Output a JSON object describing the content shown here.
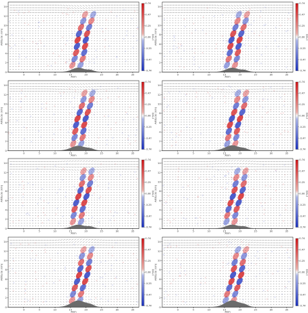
{
  "chart_data": {
    "type": "heatmap",
    "layout": "4 rows x 2 columns of vertical cross-section panels with wind vectors and shaded field over terrain",
    "colors": {
      "negative": "#1f35c4",
      "positive": "#d7191c",
      "neutral": "#ffffff",
      "terrain": "#6b6b6b",
      "vectors": "#555555"
    },
    "panels": [
      {
        "xlabel": "Xkm",
        "ylabel": "Altitude (km)",
        "x_ticks": [
          "0",
          "5",
          "10",
          "15",
          "20",
          "25",
          "30",
          "35"
        ],
        "y_ticks": [
          "0",
          "2",
          "4",
          "6",
          "8",
          "10",
          "12",
          "14"
        ],
        "colorbar": {
          "label": "(m/s)",
          "ticks": [
            "0.74",
            "0.47",
            "0.25",
            "0.00",
            "-0.25",
            "-0.47",
            "-0.74"
          ],
          "range": [
            -0.74,
            0.74
          ]
        },
        "terrain": {
          "peak_x": 17.5,
          "peak_height": 0.9,
          "width": 6,
          "secondary_x": 21.5,
          "secondary_height": 0.35
        }
      },
      {
        "xlabel": "Xkm",
        "ylabel": "Altitude (km)",
        "x_ticks": [
          "0",
          "5",
          "10",
          "15",
          "20",
          "25",
          "30",
          "35"
        ],
        "y_ticks": [
          "0",
          "2",
          "4",
          "6",
          "8",
          "10",
          "12",
          "14"
        ],
        "colorbar": {
          "label": "(m/s)",
          "ticks": [
            "0.74",
            "0.47",
            "0.25",
            "0.00",
            "-0.25",
            "-0.47",
            "-0.74"
          ],
          "range": [
            -0.74,
            0.74
          ]
        },
        "terrain": {
          "peak_x": 17.5,
          "peak_height": 0.9,
          "width": 6,
          "secondary_x": 21.5,
          "secondary_height": 0.35
        }
      },
      {
        "xlabel": "Xkm",
        "ylabel": "Altitude (km)",
        "x_ticks": [
          "0",
          "5",
          "10",
          "15",
          "20",
          "25",
          "30",
          "35"
        ],
        "y_ticks": [
          "0",
          "2",
          "4",
          "6",
          "8",
          "10",
          "12",
          "14"
        ],
        "colorbar": {
          "label": "(m/s)",
          "ticks": [
            "0.74",
            "0.47",
            "0.25",
            "0.00",
            "-0.25",
            "-0.47",
            "-0.74"
          ],
          "range": [
            -0.74,
            0.74
          ]
        },
        "terrain": {
          "peak_x": 17.5,
          "peak_height": 1.0,
          "width": 7,
          "secondary_x": 21.5,
          "secondary_height": 0.3
        }
      },
      {
        "xlabel": "Xkm",
        "ylabel": "Altitude (km)",
        "x_ticks": [
          "0",
          "5",
          "10",
          "15",
          "20",
          "25",
          "30",
          "35"
        ],
        "y_ticks": [
          "0",
          "2",
          "4",
          "6",
          "8",
          "10",
          "12",
          "14"
        ],
        "colorbar": {
          "label": "(m/s)",
          "ticks": [
            "0.74",
            "0.47",
            "0.25",
            "0.00",
            "-0.25",
            "-0.47",
            "-0.74"
          ],
          "range": [
            -0.74,
            0.74
          ]
        },
        "terrain": {
          "peak_x": 17.5,
          "peak_height": 1.1,
          "width": 7,
          "secondary_x": 21.5,
          "secondary_height": 0.3
        }
      },
      {
        "xlabel": "Xkm",
        "ylabel": "Altitude (km)",
        "x_ticks": [
          "0",
          "5",
          "10",
          "15",
          "20",
          "25",
          "30",
          "35"
        ],
        "y_ticks": [
          "0",
          "2",
          "4",
          "6",
          "8",
          "10",
          "12",
          "14"
        ],
        "colorbar": {
          "label": "(m/s)",
          "ticks": [
            "0.74",
            "0.47",
            "0.25",
            "0.00",
            "-0.25",
            "-0.47",
            "-0.74"
          ],
          "range": [
            -0.74,
            0.74
          ]
        },
        "terrain": {
          "peak_x": 17.5,
          "peak_height": 0.8,
          "width": 6,
          "secondary_x": 21.5,
          "secondary_height": 0.35
        }
      },
      {
        "xlabel": "Xkm",
        "ylabel": "Altitude (km)",
        "x_ticks": [
          "0",
          "5",
          "10",
          "15",
          "20",
          "25",
          "30",
          "35"
        ],
        "y_ticks": [
          "0",
          "2",
          "4",
          "6",
          "8",
          "10",
          "12",
          "14"
        ],
        "colorbar": {
          "label": "(m/s)",
          "ticks": [
            "0.74",
            "0.47",
            "0.25",
            "0.00",
            "-0.25",
            "-0.47",
            "-0.74"
          ],
          "range": [
            -0.74,
            0.74
          ]
        },
        "terrain": {
          "peak_x": 17.5,
          "peak_height": 0.8,
          "width": 6,
          "secondary_x": 21.5,
          "secondary_height": 0.35
        }
      },
      {
        "xlabel": "Xkm",
        "ylabel": "Altitude (km)",
        "x_ticks": [
          "0",
          "5",
          "10",
          "15",
          "20",
          "25",
          "30",
          "35"
        ],
        "y_ticks": [
          "0",
          "2",
          "4",
          "6",
          "8",
          "10",
          "12",
          "14"
        ],
        "colorbar": {
          "label": "(m/s)",
          "ticks": [
            "0.74",
            "0.47",
            "0.25",
            "0.00",
            "-0.25",
            "-0.47",
            "-0.74"
          ],
          "range": [
            -0.74,
            0.74
          ]
        },
        "terrain": {
          "peak_x": 17.5,
          "peak_height": 1.4,
          "width": 7,
          "secondary_x": 21.5,
          "secondary_height": 0.4
        }
      },
      {
        "xlabel": "Xkm",
        "ylabel": "Altitude (km)",
        "x_ticks": [
          "0",
          "5",
          "10",
          "15",
          "20",
          "25",
          "30",
          "35"
        ],
        "y_ticks": [
          "0",
          "2",
          "4",
          "6",
          "8",
          "10",
          "12",
          "14"
        ],
        "colorbar": {
          "label": "(m/s)",
          "ticks": [
            "0.74",
            "0.47",
            "0.25",
            "0.00",
            "-0.25",
            "-0.47",
            "-0.74"
          ],
          "range": [
            -0.74,
            0.74
          ]
        },
        "terrain": {
          "peak_x": 17.5,
          "peak_height": 1.4,
          "width": 7,
          "secondary_x": 21.5,
          "secondary_height": 0.4
        }
      }
    ],
    "xlim": [
      -5,
      37
    ],
    "ylim": [
      0,
      15
    ],
    "grid": false
  }
}
